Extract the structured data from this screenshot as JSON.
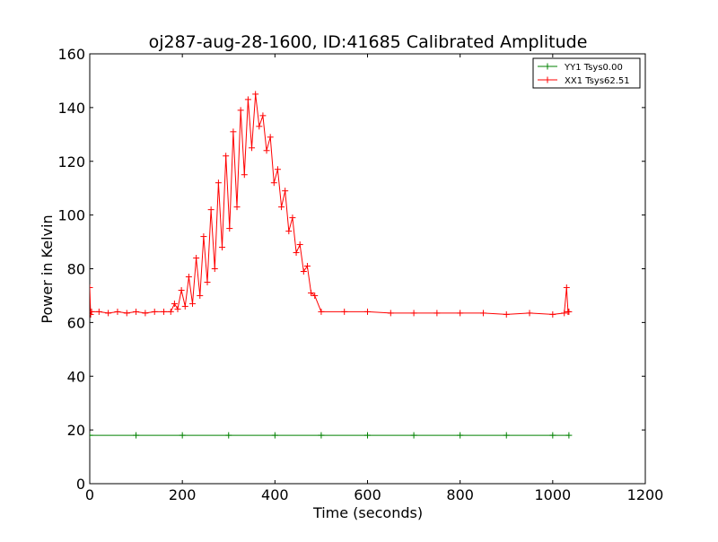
{
  "chart_data": {
    "type": "line",
    "title": "oj287-aug-28-1600, ID:41685 Calibrated Amplitude",
    "xlabel": "Time (seconds)",
    "ylabel": "Power in Kelvin",
    "xlim": [
      0,
      1200
    ],
    "ylim": [
      0,
      160
    ],
    "x_ticks": [
      0,
      200,
      400,
      600,
      800,
      1000,
      1200
    ],
    "y_ticks": [
      0,
      20,
      40,
      60,
      80,
      100,
      120,
      140,
      160
    ],
    "grid": false,
    "legend_position": "top-right",
    "marker": "+",
    "series": [
      {
        "name": "YY1 Tsys0.00",
        "color": "#008000",
        "x": [
          0,
          100,
          200,
          300,
          400,
          500,
          600,
          700,
          800,
          900,
          1000,
          1035
        ],
        "y": [
          18,
          18,
          18,
          18,
          18,
          18,
          18,
          18,
          18,
          18,
          18,
          18
        ]
      },
      {
        "name": "XX1 Tsys62.51",
        "color": "#ff0000",
        "x": [
          0,
          2,
          4,
          20,
          40,
          60,
          80,
          100,
          120,
          140,
          160,
          175,
          183,
          190,
          198,
          206,
          214,
          222,
          230,
          238,
          246,
          254,
          262,
          270,
          278,
          286,
          294,
          302,
          310,
          318,
          326,
          334,
          342,
          350,
          358,
          366,
          374,
          382,
          390,
          398,
          406,
          414,
          422,
          430,
          438,
          446,
          454,
          462,
          470,
          478,
          486,
          500,
          550,
          600,
          650,
          700,
          750,
          800,
          850,
          900,
          950,
          1000,
          1025,
          1030,
          1033,
          1035
        ],
        "y": [
          73,
          63,
          64,
          64,
          63.5,
          64,
          63.5,
          64,
          63.5,
          64,
          64,
          64,
          67,
          65,
          72,
          66,
          77,
          67,
          84,
          70,
          92,
          75,
          102,
          80,
          112,
          88,
          122,
          95,
          131,
          103,
          139,
          115,
          143,
          125,
          145,
          133,
          137,
          124,
          129,
          112,
          117,
          103,
          109,
          94,
          99,
          86,
          89,
          79,
          81,
          71,
          70,
          64,
          64,
          64,
          63.5,
          63.5,
          63.5,
          63.5,
          63.5,
          63,
          63.5,
          63,
          63.5,
          73,
          64,
          64
        ]
      }
    ]
  }
}
